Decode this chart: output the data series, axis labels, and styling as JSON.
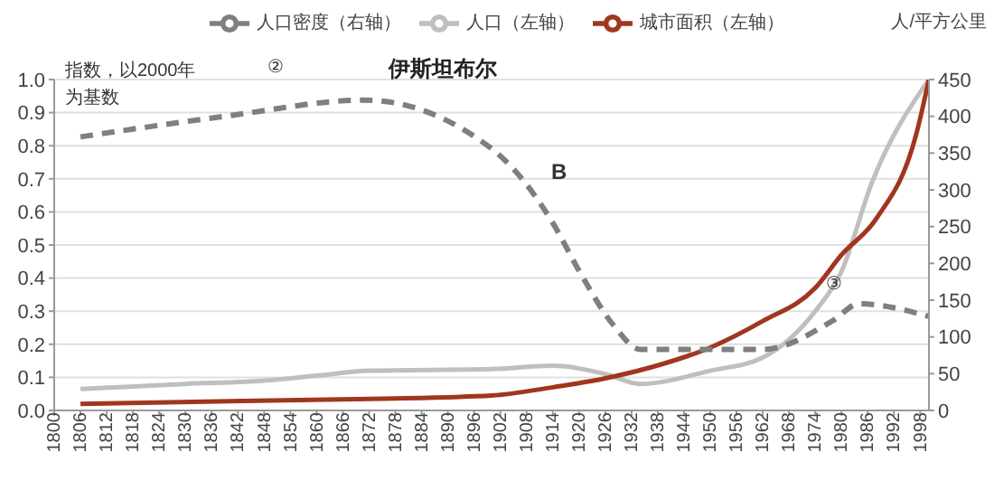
{
  "chart_data": {
    "type": "line",
    "title": "伊斯坦布尔",
    "y2label": "人/平方公里",
    "annotations": [
      "指数，以2000年为基数",
      "②",
      "B",
      "③"
    ],
    "xlim": [
      1800,
      2000
    ],
    "xticks": [
      1800,
      1806,
      1812,
      1818,
      1824,
      1830,
      1836,
      1842,
      1848,
      1854,
      1860,
      1866,
      1872,
      1878,
      1884,
      1890,
      1896,
      1902,
      1908,
      1914,
      1920,
      1926,
      1932,
      1938,
      1944,
      1950,
      1956,
      1962,
      1968,
      1974,
      1980,
      1986,
      1992,
      1998
    ],
    "ylim": [
      0,
      1
    ],
    "yticks": [
      {
        "value": 0,
        "label": "0.0"
      },
      {
        "value": 0.1,
        "label": "0.1"
      },
      {
        "value": 0.2,
        "label": "0.2"
      },
      {
        "value": 0.3,
        "label": "0.3"
      },
      {
        "value": 0.4,
        "label": "0.4"
      },
      {
        "value": 0.5,
        "label": "0.5"
      },
      {
        "value": 0.6,
        "label": "0.6"
      },
      {
        "value": 0.7,
        "label": "0.7"
      },
      {
        "value": 0.8,
        "label": "0.8"
      },
      {
        "value": 0.9,
        "label": "0.9"
      },
      {
        "value": 1,
        "label": "1.0"
      }
    ],
    "y2lim": [
      0,
      450
    ],
    "y2ticks": [
      0,
      50,
      100,
      150,
      200,
      250,
      300,
      350,
      400,
      450
    ],
    "grid": "y",
    "legend": "top",
    "marker": "none",
    "series": [
      {
        "name": "人口（左轴）",
        "color": "#bfbfbf",
        "line_style": "solid",
        "x": [
          1806,
          1830,
          1848,
          1860,
          1872,
          1900,
          1914,
          1926,
          1934,
          1950,
          1962,
          1974,
          1980,
          1987,
          2000
        ],
        "values": [
          0.065,
          0.08,
          0.09,
          0.105,
          0.12,
          0.125,
          0.135,
          0.11,
          0.08,
          0.12,
          0.16,
          0.3,
          0.42,
          0.69,
          1.0
        ]
      },
      {
        "name": "城市面积（左轴）",
        "color": "#a0361f",
        "line_style": "solid",
        "x": [
          1806,
          1872,
          1900,
          1914,
          1926,
          1939,
          1950,
          1962,
          1974,
          1980,
          1988,
          1997,
          2000
        ],
        "values": [
          0.02,
          0.035,
          0.045,
          0.07,
          0.097,
          0.14,
          0.19,
          0.27,
          0.37,
          0.47,
          0.58,
          0.83,
          1.0
        ]
      },
      {
        "name": "人口密度（右轴）",
        "color": "#7f7f7f",
        "axis": "y2",
        "line_style": "dashed",
        "x": [
          1806,
          1839,
          1871,
          1900,
          1914,
          1920,
          1928,
          1934,
          1950,
          1962,
          1978,
          1984,
          2000
        ],
        "values": [
          372,
          400,
          422,
          356,
          255,
          190,
          115,
          83,
          83,
          83,
          122,
          145,
          128
        ]
      }
    ]
  }
}
